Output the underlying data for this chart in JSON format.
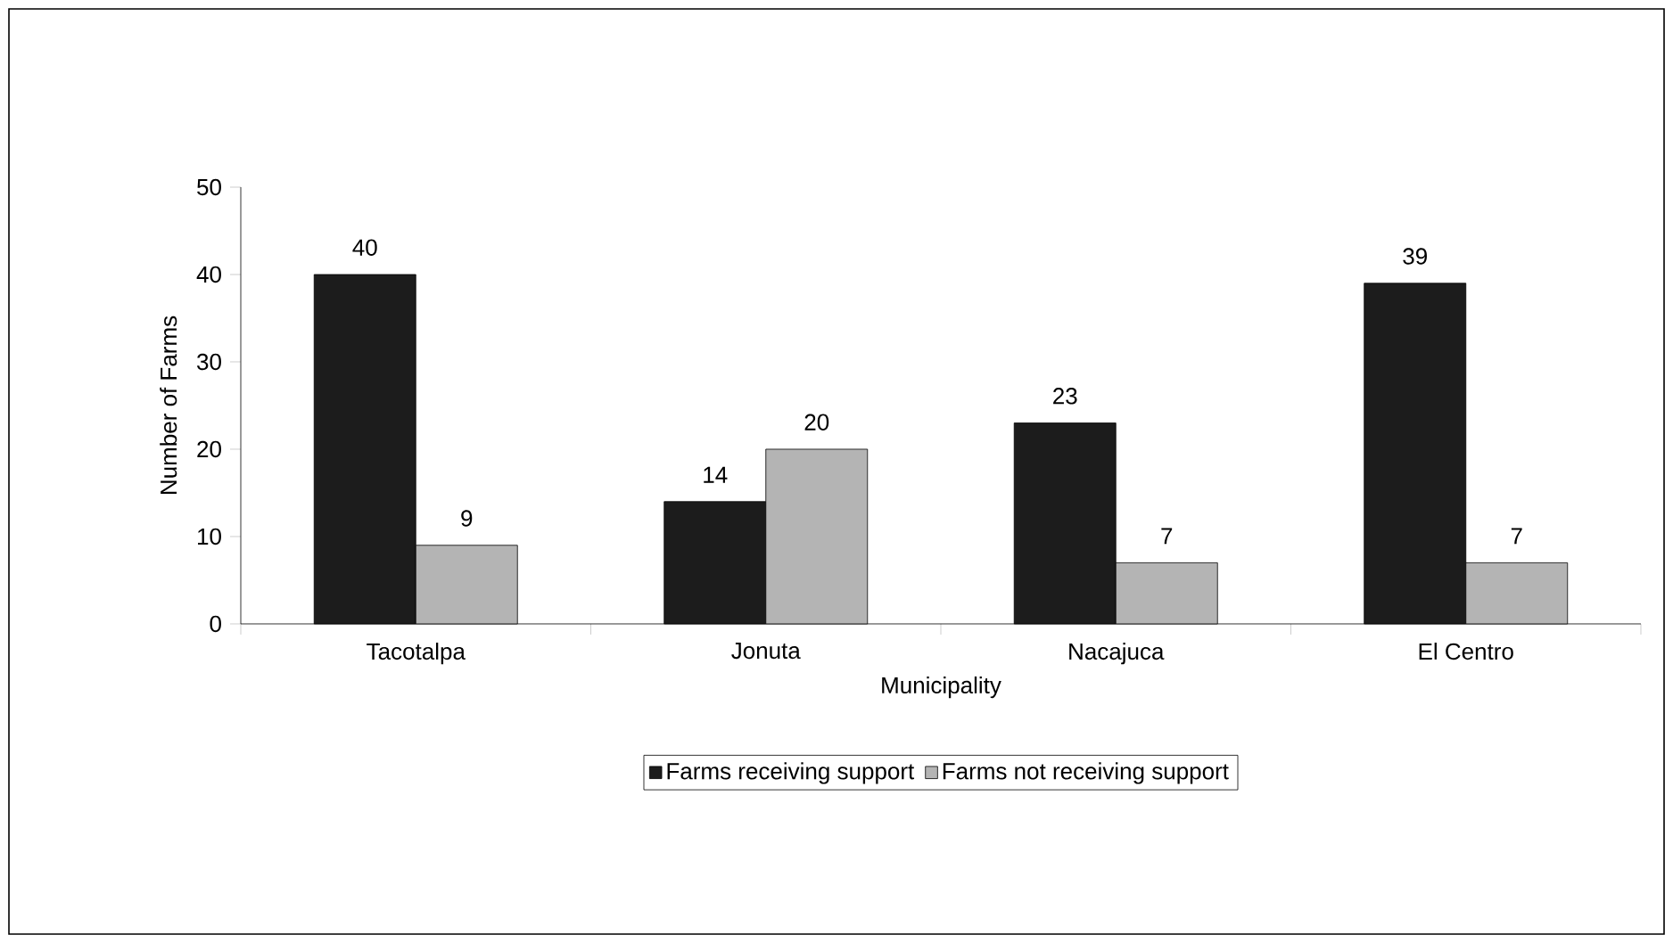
{
  "chart_data": {
    "type": "bar",
    "xlabel": "Municipality",
    "ylabel": "Number of Farms",
    "categories": [
      "Tacotalpa",
      "Jonuta",
      "Nacajuca",
      "El Centro"
    ],
    "series": [
      {
        "name": "Farms receiving support",
        "color": "#1c1c1c",
        "values": [
          40,
          14,
          23,
          39
        ]
      },
      {
        "name": "Farms not receiving support",
        "color": "#b4b4b4",
        "values": [
          9,
          20,
          7,
          7
        ]
      }
    ],
    "ylim": [
      0,
      50
    ],
    "yticks": [
      0,
      10,
      20,
      30,
      40,
      50
    ],
    "data_labels": true,
    "legend": "bottom",
    "grid": false
  }
}
